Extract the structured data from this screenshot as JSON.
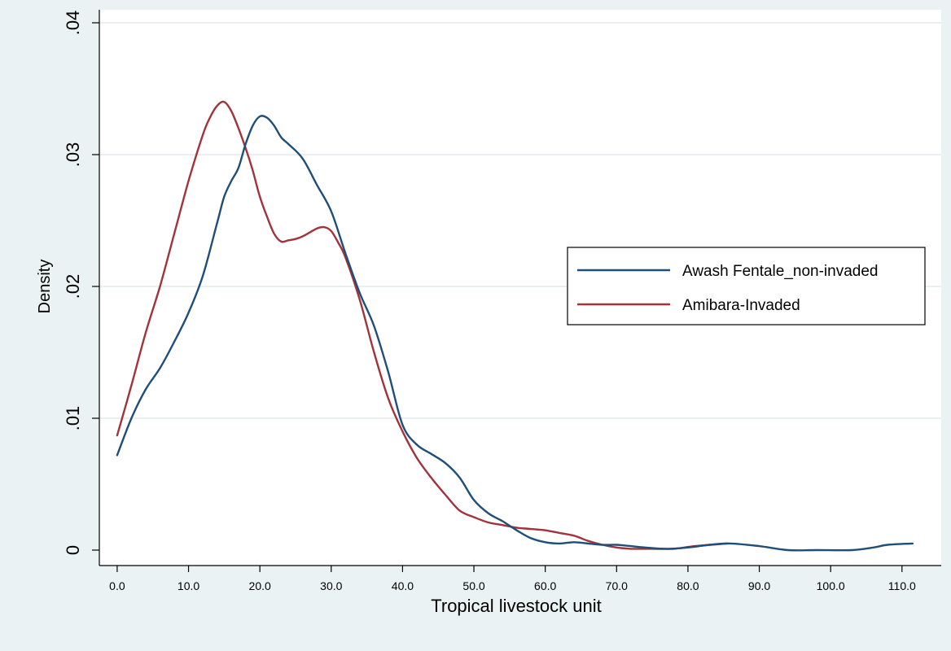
{
  "chart_data": {
    "type": "line",
    "title": "",
    "xlabel": "Tropical livestock unit",
    "ylabel": "Density",
    "xlim": [
      -2.5,
      115.5
    ],
    "ylim": [
      0,
      0.04
    ],
    "x_ticks": [
      0,
      10,
      20,
      30,
      40,
      50,
      60,
      70,
      80,
      90,
      100,
      110
    ],
    "x_tick_labels": [
      "0.0",
      "10.0",
      "20.0",
      "30.0",
      "40.0",
      "50.0",
      "60.0",
      "70.0",
      "80.0",
      "90.0",
      "100.0",
      "110.0"
    ],
    "y_ticks": [
      0,
      0.01,
      0.02,
      0.03,
      0.04
    ],
    "y_tick_labels": [
      "0",
      ".01",
      ".02",
      ".03",
      ".04"
    ],
    "grid": true,
    "legend_position": "right-middle",
    "series": [
      {
        "name": "Awash Fentale_non-invaded",
        "color": "#1f4e79",
        "x": [
          0,
          2,
          4,
          6,
          8,
          10,
          12,
          14,
          15,
          16,
          17,
          18,
          19,
          20,
          21,
          22,
          23,
          24,
          26,
          28,
          30,
          32,
          34,
          36,
          38,
          40,
          42,
          44,
          46,
          48,
          50,
          52,
          54,
          56,
          58,
          60,
          62,
          64,
          66,
          68,
          70,
          72,
          74,
          77,
          80,
          83,
          86,
          90,
          94,
          98,
          103,
          106,
          108,
          111.5
        ],
        "y": [
          0.0072,
          0.01,
          0.0122,
          0.0138,
          0.0158,
          0.018,
          0.0208,
          0.0248,
          0.0268,
          0.028,
          0.029,
          0.0308,
          0.0322,
          0.0329,
          0.0328,
          0.0322,
          0.0313,
          0.0308,
          0.0297,
          0.0277,
          0.0257,
          0.0225,
          0.0195,
          0.017,
          0.0135,
          0.0095,
          0.008,
          0.0073,
          0.0066,
          0.0055,
          0.0038,
          0.0028,
          0.0022,
          0.0015,
          0.0009,
          0.0006,
          0.0005,
          0.0006,
          0.0005,
          0.0004,
          0.0004,
          0.0003,
          0.0002,
          0.0001,
          0.0002,
          0.0004,
          0.0005,
          0.0003,
          0.0,
          0.0,
          0.0,
          0.0002,
          0.0004,
          0.0005
        ]
      },
      {
        "name": "Amibara-Invaded",
        "color": "#a0333b",
        "x": [
          0,
          2,
          4,
          6,
          8,
          10,
          12,
          13,
          14,
          15,
          16,
          17,
          18,
          19,
          20,
          21,
          22,
          23,
          24,
          25,
          26,
          27,
          28,
          29,
          30,
          31,
          32,
          34,
          36,
          38,
          40,
          42,
          44,
          46,
          48,
          50,
          52,
          54,
          56,
          58,
          60,
          62,
          64,
          66,
          68,
          70,
          72,
          75,
          78,
          81,
          85.5
        ],
        "y": [
          0.0087,
          0.0125,
          0.0165,
          0.02,
          0.024,
          0.028,
          0.0315,
          0.0328,
          0.0337,
          0.034,
          0.0333,
          0.032,
          0.0305,
          0.0288,
          0.0268,
          0.0253,
          0.024,
          0.0234,
          0.0235,
          0.0236,
          0.0238,
          0.0241,
          0.0244,
          0.0245,
          0.0242,
          0.0233,
          0.0222,
          0.019,
          0.015,
          0.0115,
          0.009,
          0.007,
          0.0055,
          0.0042,
          0.003,
          0.0025,
          0.0021,
          0.0019,
          0.0017,
          0.0016,
          0.0015,
          0.0013,
          0.0011,
          0.0007,
          0.0004,
          0.0002,
          0.0001,
          0.0001,
          0.0001,
          0.0003,
          0.0005
        ]
      }
    ]
  }
}
